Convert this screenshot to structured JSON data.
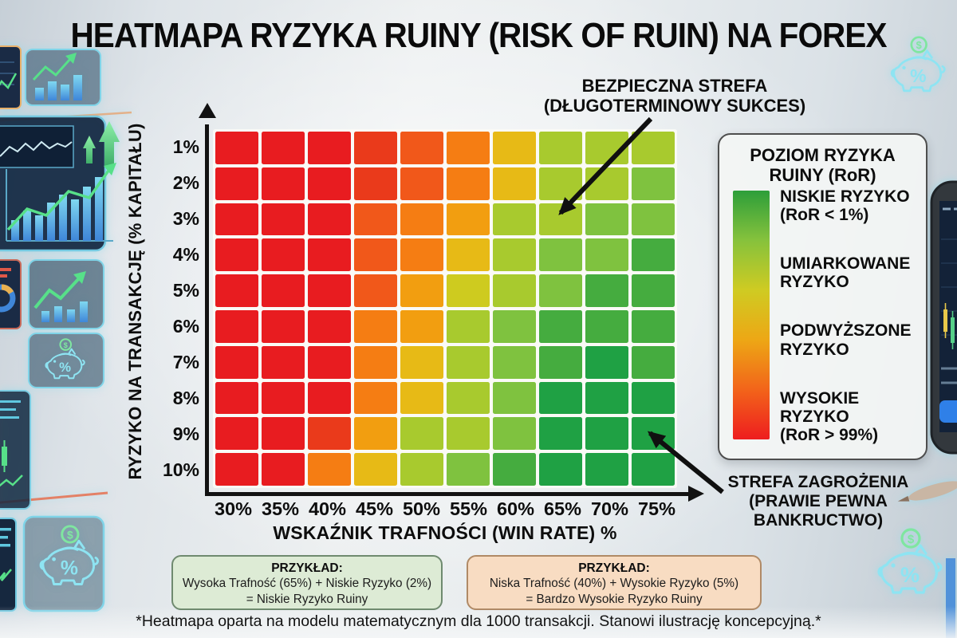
{
  "page": {
    "title": "HEATMAPA RYZYKA RUINY (RISK OF RUIN) NA FOREX",
    "footnote": "*Heatmapa oparta na modelu matematycznym dla 1000 transakcji. Stanowi ilustrację koncepcyjną.*"
  },
  "chart_data": {
    "type": "heatmap",
    "title": "HEATMAPA RYZYKA RUINY (RISK OF RUIN) NA FOREX",
    "xlabel": "WSKAŹNIK TRAFNOŚCI (WIN RATE) %",
    "ylabel": "RYZYKO NA TRANSAKCJĘ (% KAPITAŁU)",
    "x_categories": [
      "30%",
      "35%",
      "40%",
      "45%",
      "50%",
      "55%",
      "60%",
      "65%",
      "70%",
      "75%"
    ],
    "y_categories": [
      "1%",
      "2%",
      "3%",
      "4%",
      "5%",
      "6%",
      "7%",
      "8%",
      "9%",
      "10%"
    ],
    "palette": [
      "#E81C20",
      "#EA3A1B",
      "#F1581A",
      "#F57D13",
      "#F29E10",
      "#E7BA16",
      "#CECB1F",
      "#A8CA2E",
      "#7FC23F",
      "#45AC3F",
      "#1FA144"
    ],
    "palette_meaning": "0 = wysokie ryzyko ruiny (czerwony), 10 = niskie ryzyko ruiny (ciemnozielony)",
    "cells": [
      [
        0,
        0,
        0,
        1,
        2,
        3,
        5,
        7,
        7,
        7
      ],
      [
        0,
        0,
        0,
        1,
        2,
        3,
        5,
        7,
        7,
        8
      ],
      [
        0,
        0,
        0,
        2,
        3,
        4,
        7,
        7,
        8,
        8
      ],
      [
        0,
        0,
        0,
        2,
        3,
        5,
        7,
        8,
        8,
        9
      ],
      [
        0,
        0,
        0,
        2,
        4,
        6,
        7,
        8,
        9,
        9
      ],
      [
        0,
        0,
        0,
        3,
        4,
        7,
        8,
        9,
        9,
        9
      ],
      [
        0,
        0,
        0,
        3,
        5,
        7,
        8,
        9,
        10,
        9
      ],
      [
        0,
        0,
        0,
        3,
        5,
        7,
        8,
        10,
        10,
        10
      ],
      [
        0,
        0,
        1,
        4,
        7,
        7,
        8,
        10,
        10,
        10
      ],
      [
        0,
        0,
        3,
        5,
        7,
        8,
        9,
        10,
        10,
        10
      ]
    ],
    "legend_position": "right",
    "grid": "white gaps between cells, black axis lines with arrowheads"
  },
  "annotations": {
    "safe_zone": {
      "line1": "BEZPIECZNA STREFA",
      "line2": "(DŁUGOTERMINOWY SUKCES)"
    },
    "danger_zone": {
      "line1": "STREFA ZAGROŻENIA",
      "line2": "(PRAWIE PEWNA",
      "line3": "BANKRUCTWO)"
    }
  },
  "legend": {
    "title_line1": "POZIOM RYZYKA",
    "title_line2": "RUINY (RoR)",
    "gradient": [
      "#2D9E3A",
      "#86C23C",
      "#CFCB22",
      "#EDA715",
      "#F2641A",
      "#EE1D1F"
    ],
    "items": [
      {
        "line1": "NISKIE RYZYKO",
        "line2": "(RoR < 1%)"
      },
      {
        "line1": "UMIARKOWANE",
        "line2": "RYZYKO"
      },
      {
        "line1": "PODWYŻSZONE",
        "line2": "RYZYKO"
      },
      {
        "line1": "WYSOKIE RYZYKO",
        "line2": "(RoR > 99%)"
      }
    ]
  },
  "examples": {
    "good": {
      "heading": "PRZYKŁAD:",
      "line1": "Wysoka Trafność (65%) + Niskie Ryzyko (2%)",
      "line2": "= Niskie Ryzyko Ruiny",
      "bg": "#DDEBD5",
      "border": "#6F8A6F"
    },
    "bad": {
      "heading": "PRZYKŁAD:",
      "line1": "Niska Trafność (40%) + Wysokie Ryzyko (5%)",
      "line2": "= Bardzo Wysokie Ryzyko Ruiny",
      "bg": "#F8DCC2",
      "border": "#B08A66"
    }
  },
  "decor": {
    "dollar": "$",
    "percent": "%",
    "neon_cyan": "#8EE4F2",
    "neon_green": "#7FE6A0",
    "panel_navy": "#152741",
    "icons": [
      "piggy-bank-icon",
      "dollar-coin-icon",
      "percent-icon",
      "bar-chart-icon",
      "line-chart-icon",
      "up-arrow-icon",
      "trading-phone-icon"
    ]
  }
}
